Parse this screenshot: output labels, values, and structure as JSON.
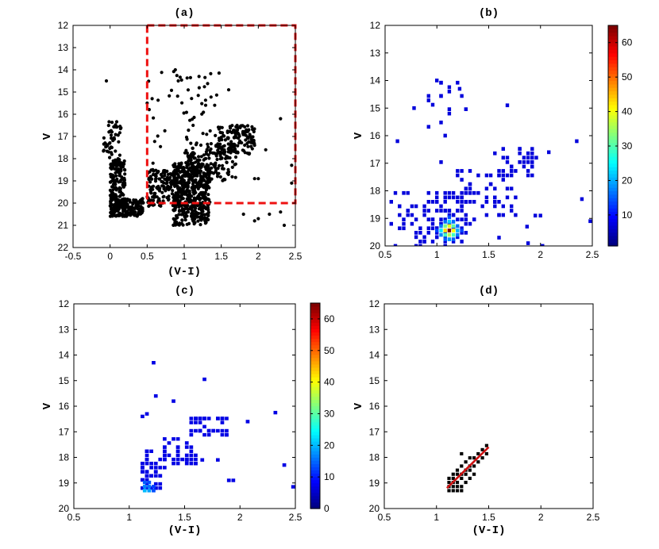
{
  "colors": {
    "scatter": "#000000",
    "selection_box": "#ee1111",
    "fit_line": "#cc1111",
    "cell_base": "#0b1fe0"
  },
  "colormap": "jet",
  "chart_data": [
    {
      "id": "a",
      "type": "scatter",
      "title": "(a)",
      "xlabel": "(V-I)",
      "ylabel": "V",
      "xlim": [
        -0.5,
        2.5
      ],
      "ylim": [
        12,
        22
      ],
      "y_reversed": true,
      "xticks": [
        "-0.5",
        "0",
        "0.5",
        "1",
        "1.5",
        "2",
        "2.5"
      ],
      "yticks": [
        "12",
        "13",
        "14",
        "15",
        "16",
        "17",
        "18",
        "19",
        "20",
        "21",
        "22"
      ],
      "selection_box": {
        "x": [
          0.5,
          2.5
        ],
        "y": [
          12,
          20
        ]
      },
      "groups": [
        {
          "n": 200,
          "x": [
            0.0,
            0.45
          ],
          "y": [
            19.8,
            20.6
          ]
        },
        {
          "n": 140,
          "x": [
            0.0,
            0.2
          ],
          "y": [
            18.0,
            20.0
          ]
        },
        {
          "n": 45,
          "x": [
            -0.1,
            0.15
          ],
          "y": [
            16.3,
            18.0
          ]
        },
        {
          "n": 420,
          "x": [
            0.85,
            1.35
          ],
          "y": [
            18.2,
            21.0
          ]
        },
        {
          "n": 160,
          "x": [
            1.0,
            1.7
          ],
          "y": [
            17.3,
            19.0
          ]
        },
        {
          "n": 130,
          "x": [
            1.45,
            1.95
          ],
          "y": [
            16.5,
            17.8
          ]
        },
        {
          "n": 160,
          "x": [
            0.5,
            1.0
          ],
          "y": [
            18.5,
            20.2
          ]
        },
        {
          "n": 60,
          "x": [
            0.5,
            1.5
          ],
          "y": [
            14.0,
            18.5
          ]
        }
      ],
      "extra_points": [
        [
          -0.05,
          14.5
        ],
        [
          2.3,
          16.2
        ],
        [
          2.45,
          18.3
        ],
        [
          2.45,
          19.1
        ],
        [
          1.95,
          18.9
        ],
        [
          2.0,
          18.9
        ],
        [
          2.3,
          20.4
        ],
        [
          2.15,
          20.5
        ],
        [
          1.8,
          20.5
        ],
        [
          1.95,
          20.8
        ],
        [
          2.0,
          20.7
        ],
        [
          2.35,
          21.0
        ],
        [
          0.5,
          15.5
        ],
        [
          1.6,
          14.9
        ],
        [
          1.2,
          14.3
        ],
        [
          1.12,
          16.5
        ],
        [
          0.88,
          14.0
        ],
        [
          0.92,
          14.5
        ],
        [
          2.1,
          17.6
        ]
      ]
    },
    {
      "id": "b",
      "type": "heatmap",
      "title": "(b)",
      "xlabel": "",
      "ylabel": "V",
      "xlim": [
        0.5,
        2.5
      ],
      "ylim": [
        12,
        20
      ],
      "y_reversed": true,
      "xticks": [
        "0.5",
        "1",
        "1.5",
        "2",
        "2.5"
      ],
      "yticks": [
        "12",
        "13",
        "14",
        "15",
        "16",
        "17",
        "18",
        "19",
        "20"
      ],
      "colorbar": {
        "ticks": [
          "10",
          "20",
          "30",
          "40",
          "50",
          "60"
        ],
        "range": [
          1,
          65
        ]
      },
      "bin_size": [
        0.04,
        0.16
      ],
      "cells": [
        [
          1.12,
          19.44,
          65
        ],
        [
          1.08,
          19.44,
          40
        ],
        [
          1.16,
          19.44,
          38
        ],
        [
          1.12,
          19.28,
          36
        ],
        [
          1.12,
          19.6,
          32
        ],
        [
          1.08,
          19.28,
          28
        ],
        [
          1.16,
          19.28,
          26
        ],
        [
          1.08,
          19.6,
          24
        ],
        [
          1.16,
          19.6,
          24
        ],
        [
          1.04,
          19.44,
          18
        ],
        [
          1.2,
          19.44,
          14
        ],
        [
          1.12,
          19.12,
          16
        ],
        [
          1.12,
          19.76,
          12
        ],
        [
          1.04,
          19.6,
          11
        ],
        [
          1.2,
          19.6,
          10
        ],
        [
          1.04,
          19.28,
          10
        ],
        [
          1.2,
          19.28,
          9
        ],
        [
          1.08,
          19.12,
          9
        ],
        [
          1.16,
          19.12,
          9
        ],
        [
          1.08,
          19.76,
          8
        ],
        [
          1.16,
          19.76,
          8
        ],
        [
          1.12,
          18.96,
          7
        ],
        [
          1.0,
          19.44,
          6
        ],
        [
          1.24,
          19.44,
          6
        ]
      ],
      "clusters": [
        {
          "n": 70,
          "x": [
            0.96,
            1.32
          ],
          "y": [
            18.0,
            20.0
          ]
        },
        {
          "n": 55,
          "x": [
            1.2,
            1.75
          ],
          "y": [
            17.2,
            19.0
          ]
        },
        {
          "n": 35,
          "x": [
            1.55,
            1.95
          ],
          "y": [
            16.5,
            17.5
          ]
        },
        {
          "n": 45,
          "x": [
            0.55,
            1.0
          ],
          "y": [
            18.0,
            20.0
          ]
        },
        {
          "n": 18,
          "x": [
            0.9,
            1.3
          ],
          "y": [
            14.0,
            17.0
          ]
        }
      ],
      "extra_cells": [
        [
          2.35,
          16.2
        ],
        [
          2.4,
          18.3
        ],
        [
          2.48,
          19.1
        ],
        [
          1.95,
          18.9
        ],
        [
          2.0,
          18.9
        ],
        [
          2.02,
          20.0
        ],
        [
          1.88,
          19.9
        ],
        [
          1.68,
          14.9
        ],
        [
          1.22,
          14.3
        ],
        [
          1.0,
          14.0
        ],
        [
          0.78,
          15.0
        ],
        [
          0.62,
          16.2
        ],
        [
          1.6,
          19.7
        ],
        [
          1.87,
          19.3
        ],
        [
          2.08,
          16.6
        ]
      ]
    },
    {
      "id": "c",
      "type": "heatmap",
      "title": "(c)",
      "xlabel": "(V-I)",
      "ylabel": "V",
      "xlim": [
        0.5,
        2.5
      ],
      "ylim": [
        12,
        20
      ],
      "y_reversed": true,
      "xticks": [
        "0.5",
        "1",
        "1.5",
        "2",
        "2.5"
      ],
      "yticks": [
        "12",
        "13",
        "14",
        "15",
        "16",
        "17",
        "18",
        "19",
        "20"
      ],
      "colorbar": {
        "ticks": [
          "0",
          "10",
          "20",
          "30",
          "40",
          "50",
          "60"
        ],
        "range": [
          0,
          65
        ]
      },
      "bin_size": [
        0.04,
        0.16
      ],
      "cells": [
        [
          1.14,
          19.3,
          14
        ],
        [
          1.18,
          19.3,
          12
        ],
        [
          1.14,
          19.14,
          10
        ],
        [
          1.18,
          19.14,
          9
        ],
        [
          1.14,
          18.98,
          7
        ],
        [
          1.22,
          19.3,
          6
        ],
        [
          1.18,
          18.98,
          6
        ],
        [
          1.22,
          19.14,
          5
        ]
      ],
      "clusters": [
        {
          "n": 55,
          "x": [
            1.12,
            1.32
          ],
          "y": [
            17.7,
            19.3
          ]
        },
        {
          "n": 40,
          "x": [
            1.3,
            1.62
          ],
          "y": [
            17.3,
            18.3
          ]
        },
        {
          "n": 40,
          "x": [
            1.55,
            1.9
          ],
          "y": [
            16.4,
            17.2
          ]
        }
      ],
      "extra_cells": [
        [
          1.12,
          16.4
        ],
        [
          1.16,
          16.3
        ],
        [
          1.22,
          14.3
        ],
        [
          1.24,
          15.6
        ],
        [
          1.4,
          15.8
        ],
        [
          1.68,
          14.95
        ],
        [
          2.32,
          16.25
        ],
        [
          2.4,
          18.3
        ],
        [
          2.48,
          19.15
        ],
        [
          1.9,
          18.9
        ],
        [
          1.94,
          18.9
        ],
        [
          2.07,
          16.6
        ],
        [
          1.8,
          18.1
        ],
        [
          1.66,
          18.1
        ],
        [
          1.52,
          18.1
        ]
      ]
    },
    {
      "id": "d",
      "type": "scatter",
      "title": "(d)",
      "xlabel": "(V-I)",
      "ylabel": "V",
      "xlim": [
        0.5,
        2.5
      ],
      "ylim": [
        12,
        20
      ],
      "y_reversed": true,
      "xticks": [
        "0.5",
        "1",
        "1.5",
        "2",
        "2.5"
      ],
      "yticks": [
        "12",
        "13",
        "14",
        "15",
        "16",
        "17",
        "18",
        "19",
        "20"
      ],
      "cells": [
        [
          1.12,
          19.3
        ],
        [
          1.12,
          19.14
        ],
        [
          1.12,
          18.98
        ],
        [
          1.12,
          18.82
        ],
        [
          1.16,
          19.3
        ],
        [
          1.16,
          19.14
        ],
        [
          1.16,
          18.98
        ],
        [
          1.16,
          18.82
        ],
        [
          1.16,
          18.66
        ],
        [
          1.2,
          19.3
        ],
        [
          1.2,
          19.14
        ],
        [
          1.2,
          18.98
        ],
        [
          1.2,
          18.66
        ],
        [
          1.2,
          18.5
        ],
        [
          1.24,
          19.3
        ],
        [
          1.24,
          19.14
        ],
        [
          1.24,
          18.82
        ],
        [
          1.24,
          18.66
        ],
        [
          1.24,
          18.34
        ],
        [
          1.24,
          17.86
        ],
        [
          1.28,
          18.98
        ],
        [
          1.28,
          18.66
        ],
        [
          1.28,
          18.5
        ],
        [
          1.28,
          18.18
        ],
        [
          1.32,
          18.82
        ],
        [
          1.32,
          18.5
        ],
        [
          1.32,
          18.34
        ],
        [
          1.32,
          18.02
        ],
        [
          1.36,
          18.66
        ],
        [
          1.36,
          18.34
        ],
        [
          1.36,
          18.02
        ],
        [
          1.4,
          18.18
        ],
        [
          1.4,
          17.86
        ],
        [
          1.44,
          18.02
        ],
        [
          1.44,
          17.7
        ],
        [
          1.48,
          17.86
        ],
        [
          1.48,
          17.54
        ]
      ],
      "fit_line": [
        [
          1.1,
          19.2
        ],
        [
          1.5,
          17.6
        ]
      ]
    }
  ]
}
